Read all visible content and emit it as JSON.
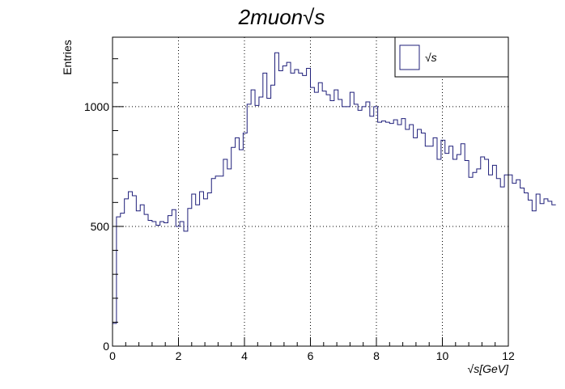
{
  "chart_data": {
    "type": "histogram",
    "title": "2muon√s",
    "xlabel": "√s[GeV]",
    "ylabel": "Entries",
    "xlim": [
      0,
      12
    ],
    "ylim": [
      0,
      1290
    ],
    "xticks": [
      0,
      2,
      4,
      6,
      8,
      10,
      12
    ],
    "xtick_labels": [
      "0",
      "2",
      "4",
      "6",
      "8",
      "10",
      "12"
    ],
    "yticks": [
      0,
      500,
      1000
    ],
    "ytick_labels": [
      "0",
      "500",
      "1000"
    ],
    "grid": true,
    "legend_position": "top-right",
    "colors": {
      "line": "#1f1f7a",
      "grid": "#000000",
      "axis": "#000000"
    },
    "series": [
      {
        "name": "√s",
        "bin_width": 0.12,
        "x_start": 0,
        "values": [
          95,
          540,
          555,
          615,
          645,
          628,
          565,
          590,
          550,
          525,
          520,
          505,
          520,
          515,
          545,
          570,
          500,
          520,
          480,
          575,
          635,
          590,
          645,
          615,
          640,
          700,
          710,
          710,
          780,
          740,
          830,
          870,
          820,
          890,
          1010,
          1070,
          1005,
          1040,
          1140,
          1035,
          1090,
          1225,
          1150,
          1170,
          1185,
          1140,
          1155,
          1140,
          1130,
          1160,
          1080,
          1060,
          1100,
          1065,
          1050,
          1025,
          1070,
          1030,
          1000,
          1000,
          1060,
          1010,
          985,
          1000,
          1020,
          960,
          1000,
          935,
          940,
          935,
          930,
          945,
          925,
          950,
          905,
          925,
          870,
          905,
          890,
          835,
          835,
          870,
          780,
          860,
          805,
          835,
          780,
          800,
          845,
          775,
          705,
          725,
          740,
          790,
          780,
          715,
          755,
          700,
          665,
          715,
          715,
          680,
          695,
          660,
          640,
          610,
          565,
          635,
          595,
          615,
          605,
          590
        ]
      }
    ]
  }
}
